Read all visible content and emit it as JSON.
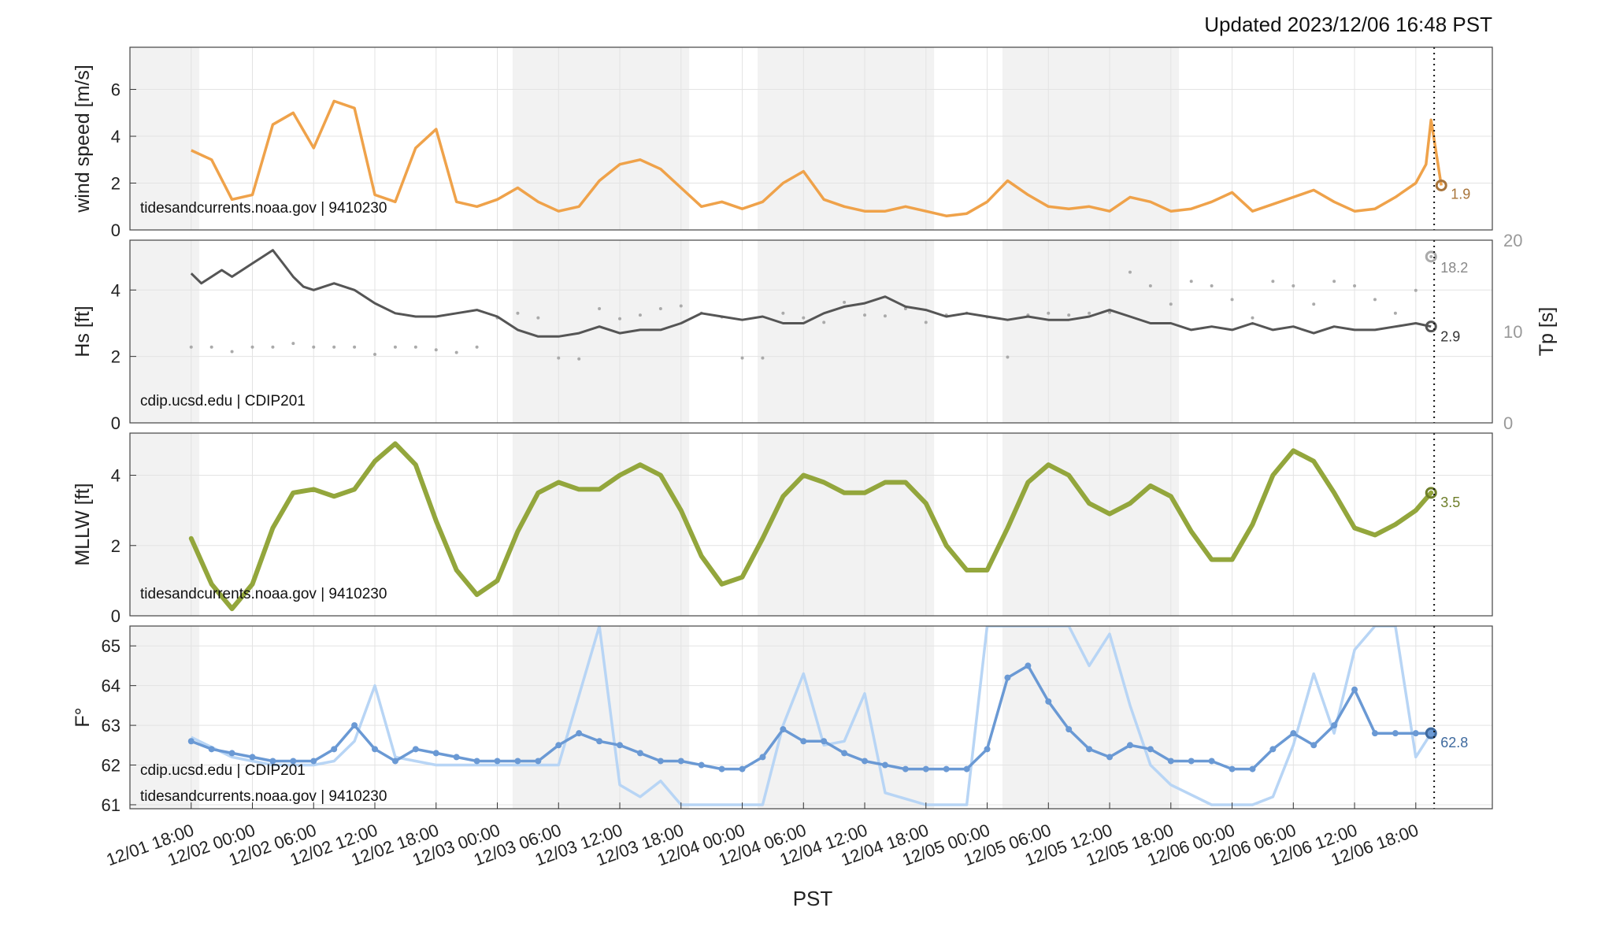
{
  "header": {
    "updated": "Updated 2023/12/06 16:48 PST"
  },
  "x_axis": {
    "label": "PST",
    "ticks": [
      "12/01 18:00",
      "12/02 00:00",
      "12/02 06:00",
      "12/02 12:00",
      "12/02 18:00",
      "12/03 00:00",
      "12/03 06:00",
      "12/03 12:00",
      "12/03 18:00",
      "12/04 00:00",
      "12/04 06:00",
      "12/04 12:00",
      "12/04 18:00",
      "12/05 00:00",
      "12/05 06:00",
      "12/05 12:00",
      "12/05 18:00",
      "12/06 00:00",
      "12/06 06:00",
      "12/06 12:00",
      "12/06 18:00"
    ]
  },
  "colors": {
    "wind": "#EFA24A",
    "wind_marker": "#A8743A",
    "hs": "#555555",
    "tp": "#AAAAAA",
    "tide": "#93A63C",
    "tide_marker": "#6E7E2A",
    "temp": "#6A99D4",
    "temp_light": "#B8D5F5",
    "temp_marker": "#3F6A9E",
    "night": "#F2F2F2"
  },
  "chart_data": [
    {
      "type": "line",
      "ylabel": "wind speed [m/s]",
      "ylim": [
        0,
        7.8
      ],
      "yticks": [
        "0",
        "2",
        "4",
        "6"
      ],
      "source": "tidesandcurrents.noaa.gov | 9410230",
      "current_value": "1.9",
      "series": [
        {
          "name": "wind speed",
          "x_hours": [
            0,
            2,
            4,
            6,
            8,
            10,
            12,
            14,
            16,
            18,
            20,
            22,
            24,
            26,
            28,
            30,
            32,
            34,
            36,
            38,
            40,
            42,
            44,
            46,
            48,
            50,
            52,
            54,
            56,
            58,
            60,
            62,
            64,
            66,
            68,
            70,
            72,
            74,
            76,
            78,
            80,
            82,
            84,
            86,
            88,
            90,
            92,
            94,
            96,
            98,
            100,
            102,
            104,
            106,
            108,
            110,
            112,
            114,
            116,
            118,
            120,
            121,
            121.5,
            122.5
          ],
          "values": [
            3.4,
            3.0,
            1.3,
            1.5,
            4.5,
            5.0,
            3.5,
            5.5,
            5.2,
            1.5,
            1.2,
            3.5,
            4.3,
            1.2,
            1.0,
            1.3,
            1.8,
            1.2,
            0.8,
            1.0,
            2.1,
            2.8,
            3.0,
            2.6,
            1.8,
            1.0,
            1.2,
            0.9,
            1.2,
            2.0,
            2.5,
            1.3,
            1.0,
            0.8,
            0.8,
            1.0,
            0.8,
            0.6,
            0.7,
            1.2,
            2.1,
            1.5,
            1.0,
            0.9,
            1.0,
            0.8,
            1.4,
            1.2,
            0.8,
            0.9,
            1.2,
            1.6,
            0.8,
            1.1,
            1.4,
            1.7,
            1.2,
            0.8,
            0.9,
            1.4,
            2.0,
            2.8,
            4.7,
            1.9
          ]
        }
      ]
    },
    {
      "type": "line",
      "ylabel": "Hs [ft]",
      "ylabel_right": "Tp [s]",
      "ylim": [
        0,
        5.5
      ],
      "ylim_right": [
        0,
        20
      ],
      "yticks": [
        "0",
        "2",
        "4"
      ],
      "yticks_right": [
        "0",
        "10",
        "20"
      ],
      "source": "cdip.ucsd.edu | CDIP201",
      "current_value": "2.9",
      "current_value_right": "18.2",
      "series": [
        {
          "name": "Hs",
          "x_hours": [
            0,
            1,
            2,
            3,
            4,
            5,
            6,
            7,
            8,
            9,
            10,
            11,
            12,
            14,
            16,
            18,
            20,
            22,
            24,
            26,
            28,
            30,
            32,
            34,
            36,
            38,
            40,
            42,
            44,
            46,
            48,
            50,
            52,
            54,
            56,
            58,
            60,
            62,
            64,
            66,
            68,
            70,
            72,
            74,
            76,
            78,
            80,
            82,
            84,
            86,
            88,
            90,
            92,
            94,
            96,
            98,
            100,
            102,
            104,
            106,
            108,
            110,
            112,
            114,
            116,
            118,
            120,
            121.5
          ],
          "values": [
            4.5,
            4.2,
            4.4,
            4.6,
            4.4,
            4.6,
            4.8,
            5.0,
            5.2,
            4.8,
            4.4,
            4.1,
            4.0,
            4.2,
            4.0,
            3.6,
            3.3,
            3.2,
            3.2,
            3.3,
            3.4,
            3.2,
            2.8,
            2.6,
            2.6,
            2.7,
            2.9,
            2.7,
            2.8,
            2.8,
            3.0,
            3.3,
            3.2,
            3.1,
            3.2,
            3.0,
            3.0,
            3.3,
            3.5,
            3.6,
            3.8,
            3.5,
            3.4,
            3.2,
            3.3,
            3.2,
            3.1,
            3.2,
            3.1,
            3.1,
            3.2,
            3.4,
            3.2,
            3.0,
            3.0,
            2.8,
            2.9,
            2.8,
            3.0,
            2.8,
            2.9,
            2.7,
            2.9,
            2.8,
            2.8,
            2.9,
            3.0,
            2.9
          ]
        },
        {
          "name": "Tp",
          "x_hours": [
            0,
            2,
            4,
            6,
            8,
            10,
            12,
            14,
            16,
            18,
            20,
            22,
            24,
            26,
            28,
            30,
            32,
            34,
            36,
            38,
            40,
            42,
            44,
            46,
            48,
            50,
            52,
            54,
            56,
            58,
            60,
            62,
            64,
            66,
            68,
            70,
            72,
            74,
            76,
            78,
            80,
            82,
            84,
            86,
            88,
            90,
            92,
            94,
            96,
            98,
            100,
            102,
            104,
            106,
            108,
            110,
            112,
            114,
            116,
            118,
            120,
            121.5
          ],
          "values": [
            8.3,
            8.3,
            7.8,
            8.3,
            8.3,
            8.7,
            8.3,
            8.3,
            8.3,
            7.5,
            8.3,
            8.3,
            8.0,
            7.7,
            8.3,
            11.5,
            12.0,
            11.5,
            7.1,
            7.0,
            12.5,
            11.4,
            11.8,
            12.5,
            12.8,
            12.0,
            11.6,
            7.1,
            7.1,
            12.0,
            11.5,
            11.0,
            13.2,
            11.8,
            11.7,
            12.5,
            11.0,
            11.8,
            12.0,
            11.6,
            7.2,
            11.8,
            12.0,
            11.8,
            12.0,
            12.1,
            16.5,
            15.0,
            13.0,
            15.5,
            15.0,
            13.5,
            11.5,
            15.5,
            15.0,
            13.0,
            15.5,
            15.0,
            13.5,
            12.0,
            14.5,
            18.2
          ]
        }
      ]
    },
    {
      "type": "line",
      "ylabel": "MLLW [ft]",
      "ylim": [
        0,
        5.2
      ],
      "yticks": [
        "0",
        "2",
        "4"
      ],
      "source": "tidesandcurrents.noaa.gov | 9410230",
      "current_value": "3.5",
      "series": [
        {
          "name": "MLLW",
          "x_hours": [
            0,
            2,
            4,
            6,
            8,
            10,
            12,
            14,
            16,
            18,
            20,
            22,
            24,
            26,
            28,
            30,
            32,
            34,
            36,
            38,
            40,
            42,
            44,
            46,
            48,
            50,
            52,
            54,
            56,
            58,
            60,
            62,
            64,
            66,
            68,
            70,
            72,
            74,
            76,
            78,
            80,
            82,
            84,
            86,
            88,
            90,
            92,
            94,
            96,
            98,
            100,
            102,
            104,
            106,
            108,
            110,
            112,
            114,
            116,
            118,
            120,
            121.5
          ],
          "values": [
            2.2,
            0.9,
            0.2,
            0.9,
            2.5,
            3.5,
            3.6,
            3.4,
            3.6,
            4.4,
            4.9,
            4.3,
            2.7,
            1.3,
            0.6,
            1.0,
            2.4,
            3.5,
            3.8,
            3.6,
            3.6,
            4.0,
            4.3,
            4.0,
            3.0,
            1.7,
            0.9,
            1.1,
            2.2,
            3.4,
            4.0,
            3.8,
            3.5,
            3.5,
            3.8,
            3.8,
            3.2,
            2.0,
            1.3,
            1.3,
            2.5,
            3.8,
            4.3,
            4.0,
            3.2,
            2.9,
            3.2,
            3.7,
            3.4,
            2.4,
            1.6,
            1.6,
            2.6,
            4.0,
            4.7,
            4.4,
            3.5,
            2.5,
            2.3,
            2.6,
            3.0,
            3.5
          ]
        }
      ]
    },
    {
      "type": "line",
      "ylabel": "F°",
      "ylim": [
        60.9,
        65.5
      ],
      "yticks": [
        "61",
        "62",
        "63",
        "64",
        "65"
      ],
      "sources": [
        "cdip.ucsd.edu | CDIP201",
        "tidesandcurrents.noaa.gov | 9410230"
      ],
      "current_value": "62.8",
      "series": [
        {
          "name": "cdip",
          "x_hours": [
            0,
            2,
            4,
            6,
            8,
            10,
            12,
            14,
            16,
            18,
            20,
            22,
            24,
            26,
            28,
            30,
            32,
            34,
            36,
            38,
            40,
            42,
            44,
            46,
            48,
            50,
            52,
            54,
            56,
            58,
            60,
            62,
            64,
            66,
            68,
            70,
            72,
            74,
            76,
            78,
            80,
            82,
            84,
            86,
            88,
            90,
            92,
            94,
            96,
            98,
            100,
            102,
            104,
            106,
            108,
            110,
            112,
            114,
            116,
            118,
            120,
            121.5
          ],
          "values": [
            62.6,
            62.4,
            62.3,
            62.2,
            62.1,
            62.1,
            62.1,
            62.4,
            63.0,
            62.4,
            62.1,
            62.4,
            62.3,
            62.2,
            62.1,
            62.1,
            62.1,
            62.1,
            62.5,
            62.8,
            62.6,
            62.5,
            62.3,
            62.1,
            62.1,
            62.0,
            61.9,
            61.9,
            62.2,
            62.9,
            62.6,
            62.6,
            62.3,
            62.1,
            62.0,
            61.9,
            61.9,
            61.9,
            61.9,
            62.4,
            64.2,
            64.5,
            63.6,
            62.9,
            62.4,
            62.2,
            62.5,
            62.4,
            62.1,
            62.1,
            62.1,
            61.9,
            61.9,
            62.4,
            62.8,
            62.5,
            63.0,
            63.9,
            62.8,
            62.8,
            62.8,
            62.8
          ]
        },
        {
          "name": "noaa",
          "x_hours": [
            0,
            4,
            8,
            12,
            14,
            16,
            18,
            20,
            22,
            24,
            28,
            32,
            36,
            40,
            42,
            44,
            46,
            48,
            52,
            56,
            58,
            60,
            62,
            64,
            66,
            68,
            72,
            76,
            78,
            80,
            82,
            84,
            86,
            88,
            90,
            92,
            94,
            96,
            100,
            104,
            106,
            108,
            110,
            112,
            114,
            116,
            118,
            120,
            121.5
          ],
          "values": [
            62.7,
            62.2,
            62.0,
            62.0,
            62.1,
            62.6,
            64.0,
            62.2,
            62.1,
            62.0,
            62.0,
            62.0,
            62.0,
            65.5,
            61.5,
            61.2,
            61.6,
            61.0,
            61.0,
            61.0,
            63.0,
            64.3,
            62.5,
            62.6,
            63.8,
            61.3,
            61.0,
            61.0,
            65.5,
            65.5,
            65.5,
            65.5,
            65.5,
            64.5,
            65.3,
            63.5,
            62.0,
            61.5,
            61.0,
            61.0,
            61.2,
            62.5,
            64.3,
            62.8,
            64.9,
            65.5,
            65.5,
            62.2,
            62.8
          ]
        }
      ]
    }
  ]
}
